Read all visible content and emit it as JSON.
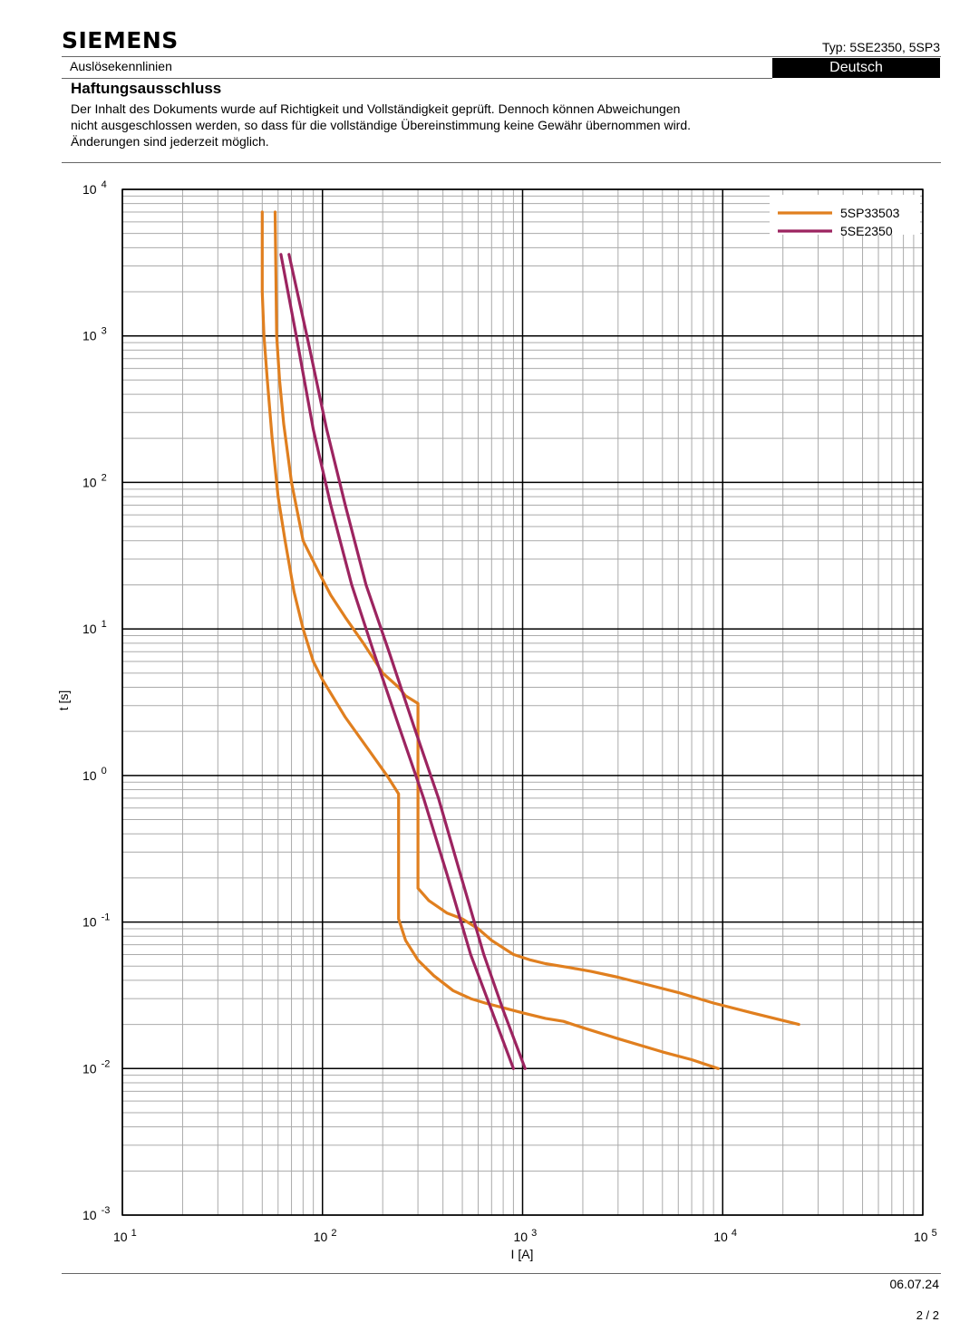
{
  "header": {
    "brand": "SIEMENS",
    "type_label": "Typ: 5SE2350, 5SP3",
    "subtitle": "Auslösekennlinien",
    "language": "Deutsch"
  },
  "disclaimer": {
    "title": "Haftungsausschluss",
    "text": "Der Inhalt des Dokuments wurde auf Richtigkeit und Vollständigkeit geprüft. Dennoch können Abweichungen nicht ausgeschlossen werden, so dass für die vollständige Übereinstimmung keine Gewähr übernommen wird. Änderungen sind jederzeit möglich."
  },
  "footer": {
    "date": "06.07.24",
    "page": "2 / 2"
  },
  "chart_data": {
    "type": "line",
    "xlabel": "I [A]",
    "ylabel": "t [s]",
    "xscale": "log",
    "yscale": "log",
    "xlim": [
      10,
      100000
    ],
    "ylim": [
      0.001,
      10000
    ],
    "x_ticks": [
      10,
      100,
      1000,
      10000,
      100000
    ],
    "y_ticks": [
      0.001,
      0.01,
      0.1,
      1,
      10,
      100,
      1000,
      10000
    ],
    "x_tick_labels": [
      [
        "10",
        "1"
      ],
      [
        "10",
        "2"
      ],
      [
        "10",
        "3"
      ],
      [
        "10",
        "4"
      ],
      [
        "10",
        "5"
      ]
    ],
    "y_tick_labels": [
      [
        "10",
        "-3"
      ],
      [
        "10",
        "-2"
      ],
      [
        "10",
        "-1"
      ],
      [
        "10",
        "0"
      ],
      [
        "10",
        "1"
      ],
      [
        "10",
        "2"
      ],
      [
        "10",
        "3"
      ],
      [
        "10",
        "4"
      ]
    ],
    "grid": true,
    "legend_position": "top-right",
    "series": [
      {
        "name": "5SP33503",
        "color": "#e07f1f",
        "curves": [
          [
            [
              50,
              7000
            ],
            [
              50,
              2000
            ],
            [
              51,
              1000
            ],
            [
              53,
              500
            ],
            [
              56,
              200
            ],
            [
              60,
              80
            ],
            [
              65,
              40
            ],
            [
              72,
              18
            ],
            [
              80,
              10
            ],
            [
              90,
              6
            ],
            [
              100,
              4.5
            ],
            [
              130,
              2.5
            ],
            [
              170,
              1.5
            ],
            [
              210,
              1.0
            ],
            [
              240,
              0.75
            ],
            [
              240,
              0.35
            ],
            [
              240,
              0.105
            ],
            [
              260,
              0.075
            ],
            [
              300,
              0.055
            ],
            [
              360,
              0.043
            ],
            [
              450,
              0.034
            ],
            [
              550,
              0.03
            ],
            [
              650,
              0.028
            ],
            [
              800,
              0.026
            ],
            [
              1000,
              0.024
            ],
            [
              1300,
              0.022
            ],
            [
              1600,
              0.021
            ],
            [
              2000,
              0.019
            ],
            [
              3000,
              0.016
            ],
            [
              5000,
              0.013
            ],
            [
              7000,
              0.0115
            ],
            [
              9500,
              0.01
            ]
          ],
          [
            [
              58,
              7000
            ],
            [
              59,
              1000
            ],
            [
              61,
              500
            ],
            [
              64,
              250
            ],
            [
              70,
              100
            ],
            [
              80,
              40
            ],
            [
              95,
              25
            ],
            [
              110,
              17
            ],
            [
              130,
              12
            ],
            [
              160,
              8
            ],
            [
              200,
              5
            ],
            [
              240,
              4
            ],
            [
              260,
              3.5
            ],
            [
              300,
              3.1
            ],
            [
              300,
              1.2
            ],
            [
              300,
              0.4
            ],
            [
              300,
              0.17
            ],
            [
              340,
              0.14
            ],
            [
              420,
              0.115
            ],
            [
              500,
              0.105
            ],
            [
              600,
              0.09
            ],
            [
              700,
              0.075
            ],
            [
              900,
              0.06
            ],
            [
              1100,
              0.055
            ],
            [
              1300,
              0.052
            ],
            [
              1700,
              0.049
            ],
            [
              2200,
              0.046
            ],
            [
              3000,
              0.042
            ],
            [
              4000,
              0.038
            ],
            [
              6000,
              0.033
            ],
            [
              9000,
              0.028
            ],
            [
              14000,
              0.024
            ],
            [
              24000,
              0.02
            ]
          ]
        ]
      },
      {
        "name": "5SE2350",
        "color": "#9c2460",
        "curves": [
          [
            [
              62,
              3600
            ],
            [
              75,
              900
            ],
            [
              90,
              230
            ],
            [
              110,
              70
            ],
            [
              140,
              20
            ],
            [
              180,
              7
            ],
            [
              240,
              2.2
            ],
            [
              320,
              0.7
            ],
            [
              420,
              0.21
            ],
            [
              550,
              0.06
            ],
            [
              700,
              0.025
            ],
            [
              900,
              0.01
            ]
          ],
          [
            [
              68,
              3600
            ],
            [
              85,
              900
            ],
            [
              105,
              230
            ],
            [
              130,
              70
            ],
            [
              165,
              20
            ],
            [
              215,
              7
            ],
            [
              285,
              2.2
            ],
            [
              380,
              0.7
            ],
            [
              490,
              0.21
            ],
            [
              640,
              0.06
            ],
            [
              800,
              0.025
            ],
            [
              1030,
              0.01
            ]
          ]
        ]
      }
    ]
  }
}
